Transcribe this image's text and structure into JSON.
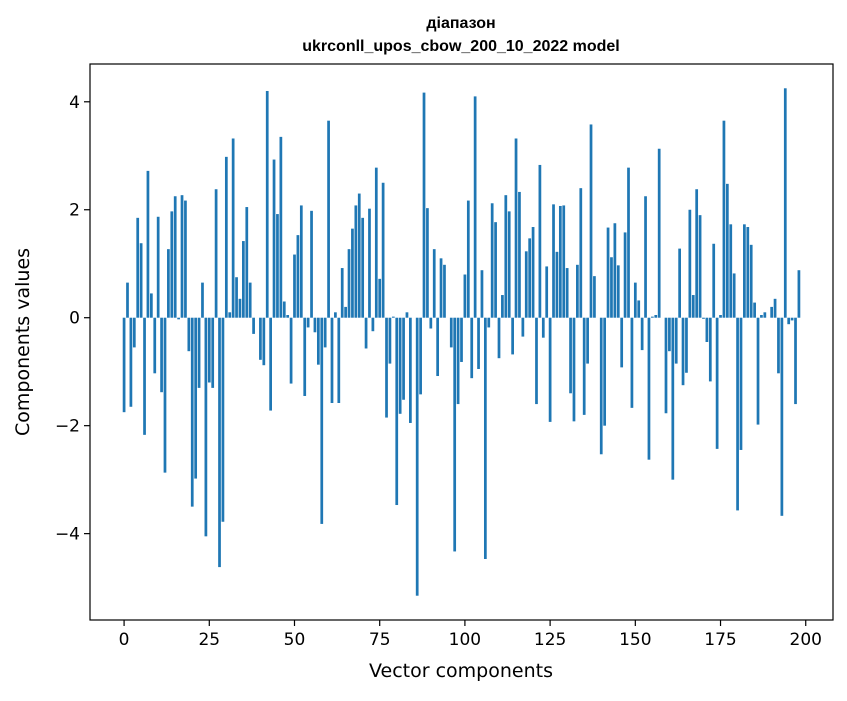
{
  "chart_data": {
    "type": "bar",
    "title_line1": "діапазон",
    "title_line2": "ukrconll_upos_cbow_200_10_2022 model",
    "xlabel": "Vector components",
    "ylabel": "Components values",
    "xlim": [
      -10,
      208
    ],
    "ylim": [
      -5.6,
      4.7
    ],
    "xticks": [
      0,
      25,
      50,
      75,
      100,
      125,
      150,
      175,
      200
    ],
    "yticks": [
      -4,
      -2,
      0,
      2,
      4
    ],
    "xtick_labels": [
      "0",
      "25",
      "50",
      "75",
      "100",
      "125",
      "150",
      "175",
      "200"
    ],
    "ytick_labels": [
      "−4",
      "−2",
      "0",
      "2",
      "4"
    ],
    "bar_color": "#1f77b4",
    "grid": false,
    "values": [
      -1.75,
      0.65,
      -1.65,
      -0.55,
      1.85,
      1.38,
      -2.17,
      2.72,
      0.45,
      -1.03,
      1.87,
      -1.38,
      -2.87,
      1.27,
      1.97,
      2.25,
      -0.03,
      2.27,
      2.17,
      -0.62,
      -3.5,
      -2.98,
      -1.3,
      0.65,
      -4.05,
      -1.2,
      -1.3,
      2.38,
      -4.62,
      -3.78,
      2.98,
      0.1,
      3.32,
      0.75,
      0.35,
      1.42,
      2.05,
      0.65,
      -0.3,
      0.0,
      -0.78,
      -0.88,
      4.2,
      -1.72,
      2.93,
      1.92,
      3.35,
      0.3,
      0.05,
      -1.22,
      1.17,
      1.53,
      2.08,
      -1.45,
      -0.18,
      1.98,
      -0.27,
      -0.87,
      -3.82,
      -0.55,
      3.65,
      -1.58,
      0.1,
      -1.58,
      0.92,
      0.2,
      1.27,
      1.65,
      2.08,
      2.3,
      1.85,
      -0.57,
      2.02,
      -0.25,
      2.78,
      0.72,
      2.5,
      -1.85,
      -0.85,
      0.02,
      -3.47,
      -1.78,
      -1.52,
      0.1,
      -1.95,
      0.0,
      -5.15,
      -1.42,
      4.17,
      2.03,
      -0.2,
      1.27,
      -1.08,
      1.1,
      0.98,
      0.0,
      -0.55,
      -4.33,
      -1.6,
      -0.82,
      0.8,
      2.17,
      -1.12,
      4.1,
      -0.95,
      0.88,
      -4.47,
      -0.18,
      2.12,
      1.77,
      -0.75,
      0.42,
      2.27,
      1.97,
      -0.68,
      3.32,
      2.33,
      -0.35,
      1.23,
      1.47,
      1.68,
      -1.6,
      2.83,
      -0.37,
      0.95,
      -1.93,
      2.1,
      1.22,
      2.07,
      2.08,
      0.92,
      -1.4,
      -1.92,
      0.98,
      2.4,
      -1.8,
      -0.85,
      3.58,
      0.77,
      0.0,
      -2.53,
      -2.0,
      1.67,
      1.12,
      1.75,
      0.97,
      -0.92,
      1.58,
      2.78,
      -1.67,
      0.65,
      0.32,
      -0.6,
      2.25,
      -2.63,
      0.02,
      0.05,
      3.13,
      0.0,
      -1.77,
      -0.62,
      -3.0,
      -0.85,
      1.28,
      -1.25,
      -1.02,
      2.0,
      0.42,
      2.38,
      1.9,
      -0.02,
      -0.45,
      -1.18,
      1.37,
      -2.43,
      0.05,
      3.65,
      2.48,
      1.73,
      0.82,
      -3.57,
      -2.45,
      1.73,
      1.68,
      1.35,
      0.28,
      -1.98,
      0.05,
      0.1,
      0.0,
      0.2,
      0.35,
      -1.03,
      -3.67,
      4.25,
      -0.12,
      -0.05,
      -1.6,
      0.88
    ]
  }
}
